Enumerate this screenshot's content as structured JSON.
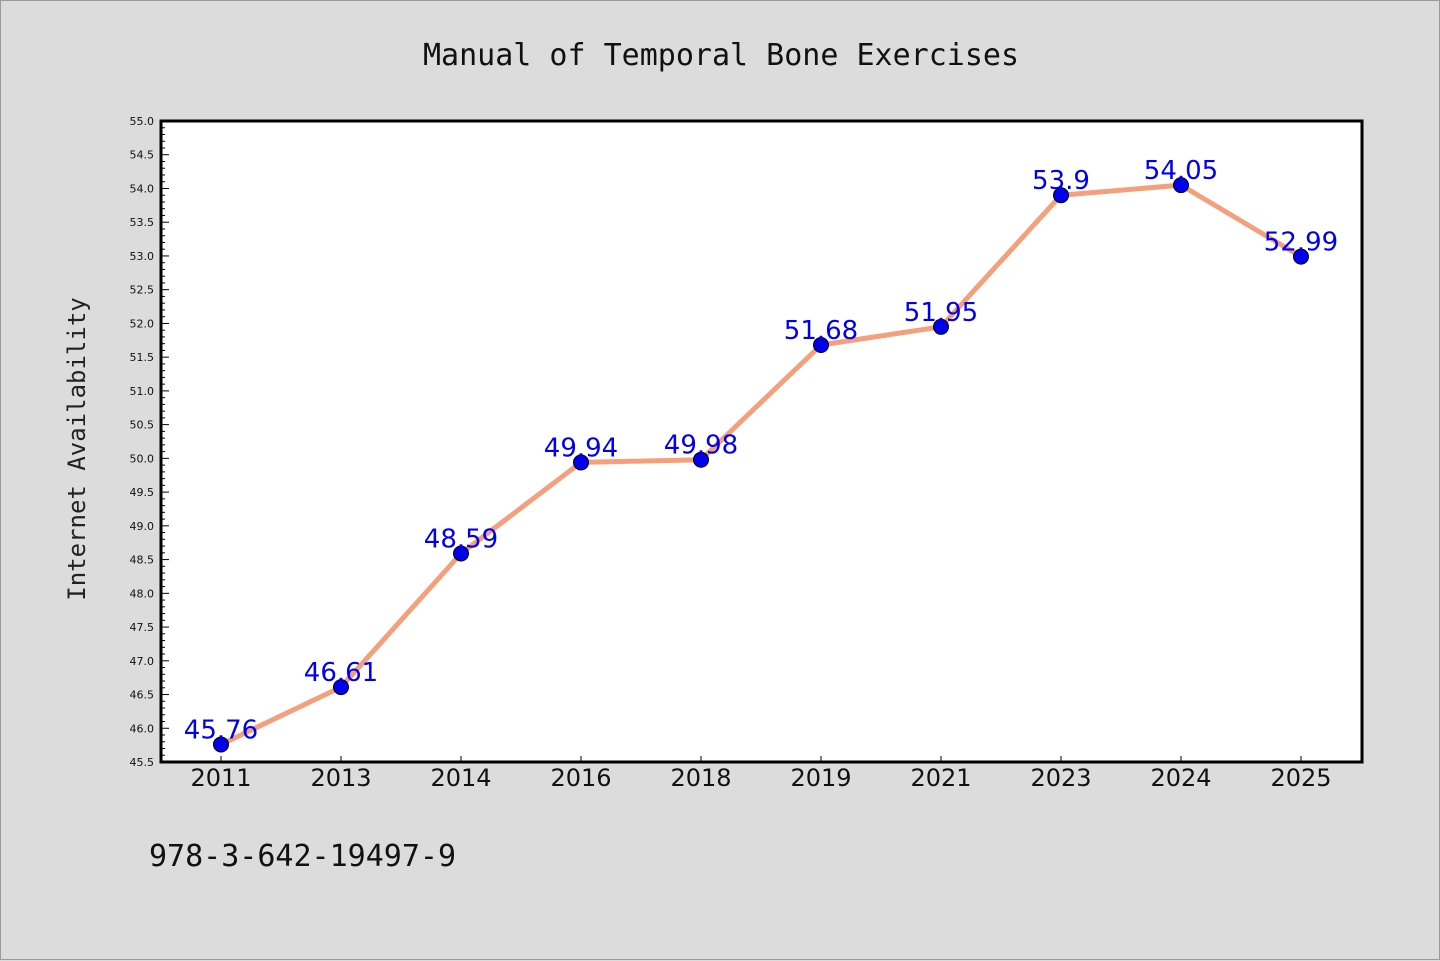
{
  "chart_data": {
    "type": "line",
    "title": "Manual of Temporal Bone Exercises",
    "ylabel": "Internet Availability",
    "xlabel": "",
    "categories": [
      "2011",
      "2013",
      "2014",
      "2016",
      "2018",
      "2019",
      "2021",
      "2023",
      "2024",
      "2025"
    ],
    "values": [
      45.76,
      46.61,
      48.59,
      49.94,
      49.98,
      51.68,
      51.95,
      53.9,
      54.05,
      52.99
    ],
    "data_labels": [
      "45.76",
      "46.61",
      "48.59",
      "49.94",
      "49.98",
      "51.68",
      "51.95",
      "53.9",
      "54.05",
      "52.99"
    ],
    "ylim": [
      45.5,
      55.0
    ],
    "y_major_ticks": [
      "45.5",
      "46.0",
      "46.5",
      "47.0",
      "47.5",
      "48.0",
      "48.5",
      "49.0",
      "49.5",
      "50.0",
      "50.5",
      "51.0",
      "51.5",
      "52.0",
      "52.5",
      "53.0",
      "53.5",
      "54.0",
      "54.5",
      "55.0"
    ],
    "y_minor_step": 0.1,
    "grid": false,
    "legend": "none",
    "line_color": "#f4a07c",
    "marker_color": "#0000ee",
    "label_color": "#0000ee"
  },
  "footer": {
    "isbn": "978-3-642-19497-9"
  }
}
